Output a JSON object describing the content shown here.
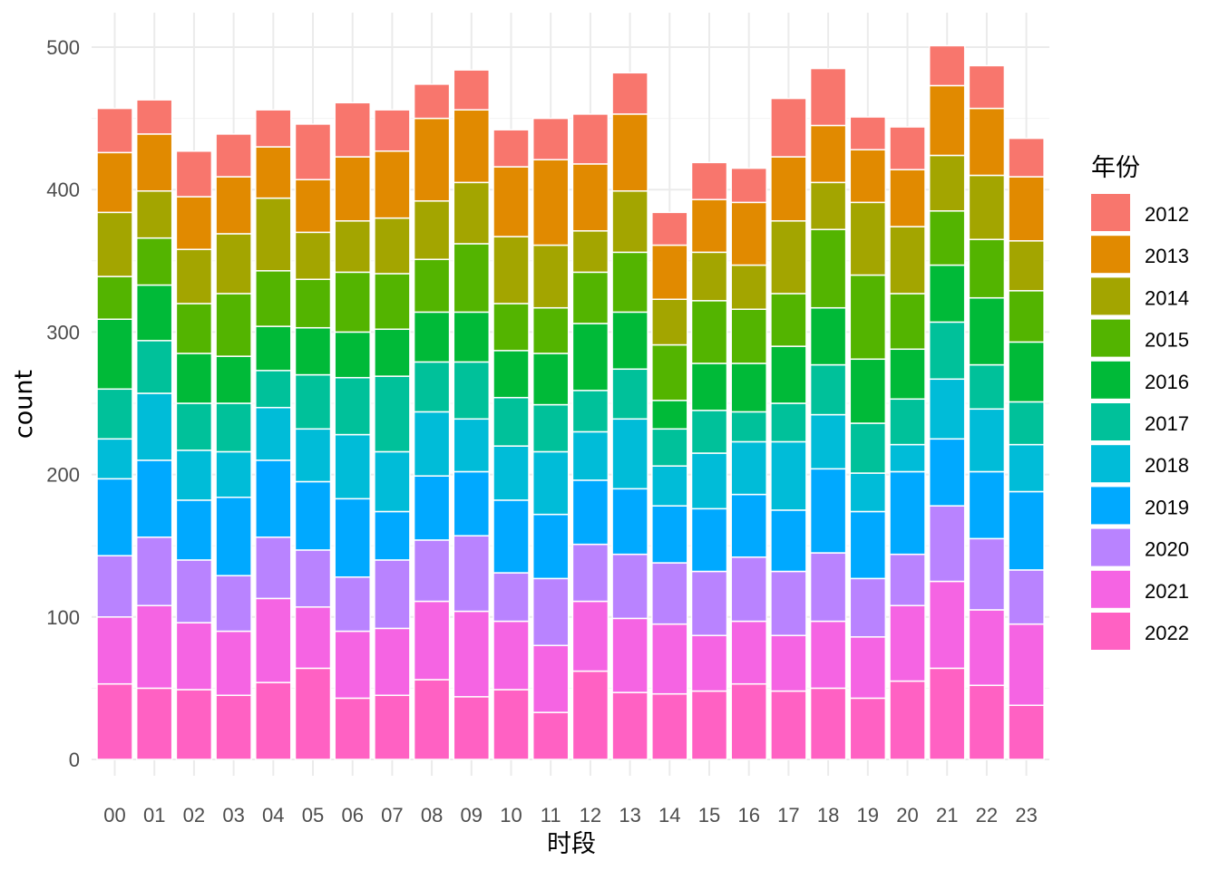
{
  "chart_data": {
    "type": "bar",
    "stacked": true,
    "xlabel": "时段",
    "ylabel": "count",
    "ylim": [
      0,
      515
    ],
    "yticks": [
      0,
      100,
      200,
      300,
      400,
      500
    ],
    "grid": true,
    "legend_title": "年份",
    "legend_position": "right",
    "categories": [
      "00",
      "01",
      "02",
      "03",
      "04",
      "05",
      "06",
      "07",
      "08",
      "09",
      "10",
      "11",
      "12",
      "13",
      "14",
      "15",
      "16",
      "17",
      "18",
      "19",
      "20",
      "21",
      "22",
      "23"
    ],
    "series": [
      {
        "name": "2022",
        "color": "#FF61C3",
        "values": [
          53,
          50,
          49,
          45,
          54,
          64,
          43,
          45,
          56,
          44,
          49,
          33,
          62,
          47,
          46,
          48,
          53,
          48,
          50,
          43,
          55,
          64,
          52,
          38
        ]
      },
      {
        "name": "2021",
        "color": "#F564E3",
        "values": [
          47,
          58,
          47,
          45,
          59,
          43,
          47,
          47,
          55,
          60,
          48,
          47,
          49,
          52,
          49,
          39,
          44,
          39,
          47,
          43,
          53,
          61,
          53,
          57
        ]
      },
      {
        "name": "2020",
        "color": "#B983FF",
        "values": [
          43,
          48,
          44,
          39,
          43,
          40,
          38,
          48,
          43,
          53,
          34,
          47,
          40,
          45,
          43,
          45,
          45,
          45,
          48,
          41,
          36,
          53,
          50,
          38
        ]
      },
      {
        "name": "2019",
        "color": "#00A9FF",
        "values": [
          54,
          54,
          42,
          55,
          54,
          48,
          55,
          34,
          45,
          45,
          51,
          45,
          45,
          46,
          40,
          44,
          44,
          43,
          59,
          47,
          58,
          47,
          47,
          55
        ]
      },
      {
        "name": "2018",
        "color": "#00BCD8",
        "values": [
          28,
          47,
          35,
          32,
          37,
          37,
          45,
          42,
          45,
          37,
          38,
          44,
          34,
          49,
          28,
          39,
          37,
          48,
          38,
          27,
          19,
          42,
          44,
          33
        ]
      },
      {
        "name": "2017",
        "color": "#00C19A",
        "values": [
          35,
          37,
          33,
          34,
          26,
          38,
          40,
          53,
          35,
          40,
          34,
          33,
          29,
          35,
          26,
          30,
          21,
          27,
          35,
          35,
          32,
          40,
          31,
          30
        ]
      },
      {
        "name": "2016",
        "color": "#00BA38",
        "values": [
          49,
          39,
          35,
          33,
          31,
          33,
          32,
          33,
          35,
          35,
          33,
          36,
          47,
          40,
          20,
          33,
          34,
          40,
          40,
          45,
          35,
          40,
          47,
          42
        ]
      },
      {
        "name": "2015",
        "color": "#53B400",
        "values": [
          30,
          33,
          35,
          44,
          39,
          34,
          42,
          39,
          37,
          48,
          33,
          32,
          36,
          42,
          39,
          44,
          38,
          37,
          55,
          59,
          39,
          38,
          41,
          36
        ]
      },
      {
        "name": "2014",
        "color": "#A3A500",
        "values": [
          45,
          33,
          38,
          42,
          51,
          33,
          36,
          39,
          41,
          43,
          47,
          44,
          29,
          43,
          32,
          34,
          31,
          51,
          33,
          51,
          47,
          39,
          45,
          35
        ]
      },
      {
        "name": "2013",
        "color": "#E18A00",
        "values": [
          42,
          40,
          37,
          40,
          36,
          37,
          45,
          47,
          58,
          51,
          49,
          60,
          47,
          54,
          38,
          37,
          44,
          45,
          40,
          37,
          40,
          49,
          47,
          45
        ]
      },
      {
        "name": "2012",
        "color": "#F8766D",
        "values": [
          31,
          24,
          32,
          30,
          26,
          39,
          38,
          29,
          24,
          28,
          26,
          29,
          35,
          29,
          23,
          26,
          24,
          41,
          40,
          23,
          30,
          28,
          30,
          27
        ]
      }
    ]
  }
}
